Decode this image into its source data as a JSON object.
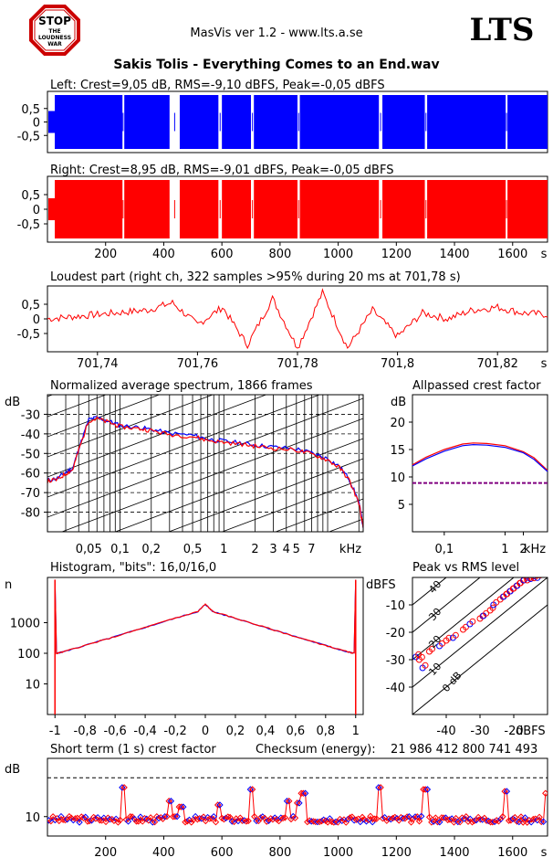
{
  "app": {
    "title": "MasVis ver 1.2 - www.lts.a.se",
    "brand": "LTS",
    "logo": {
      "line1": "STOP",
      "line2": "THE",
      "line3": "LOUDNESS",
      "line4": "WAR"
    },
    "file_title": "Sakis Tolis - Everything Comes to an End.wav",
    "checksum_label": "Checksum (energy):",
    "checksum_value": "21 986 412 800 741 493"
  },
  "colors": {
    "left": "#0000ff",
    "right": "#ff0000"
  },
  "chart_data": [
    {
      "id": "left",
      "type": "area",
      "title": "Left: Crest=9,05 dB, RMS=-9,10 dBFS, Peak=-0,05 dBFS",
      "yticks": [
        "0,5",
        "0",
        "-0,5"
      ],
      "ylim": [
        -1,
        1
      ],
      "xlim": [
        0,
        1720
      ],
      "gaps_s": [
        258,
        262,
        420,
        455,
        588,
        600,
        700,
        710,
        860,
        868,
        1140,
        1152,
        1298,
        1306,
        1576,
        1582
      ]
    },
    {
      "id": "right",
      "type": "area",
      "title": "Right: Crest=8,95 dB, RMS=-9,01 dBFS, Peak=-0,05 dBFS",
      "yticks": [
        "0,5",
        "0",
        "-0,5"
      ],
      "xticks": [
        "200",
        "400",
        "600",
        "800",
        "1000",
        "1200",
        "1400",
        "1600",
        "s"
      ],
      "xtick_values": [
        200,
        400,
        600,
        800,
        1000,
        1200,
        1400,
        1600
      ],
      "ylim": [
        -1,
        1
      ],
      "xlim": [
        0,
        1720
      ],
      "gaps_s": [
        258,
        262,
        420,
        455,
        588,
        600,
        700,
        710,
        860,
        868,
        1140,
        1152,
        1298,
        1306,
        1576,
        1582
      ]
    },
    {
      "id": "loudest",
      "type": "line",
      "title": "Loudest part (right ch, 322 samples >95% during 20 ms at 701,78 s)",
      "yticks": [
        "0,5",
        "0",
        "-0,5"
      ],
      "xticks": [
        "701,74",
        "701,76",
        "701,78",
        "701,8",
        "701,82",
        "s"
      ],
      "xtick_values": [
        701.74,
        701.76,
        701.78,
        701.8,
        701.82
      ],
      "xlim": [
        701.73,
        701.83
      ],
      "ylim": [
        -1,
        1
      ],
      "x": [
        701.73,
        701.74,
        701.75,
        701.755,
        701.76,
        701.765,
        701.77,
        701.775,
        701.78,
        701.785,
        701.79,
        701.795,
        701.8,
        701.805,
        701.81,
        701.815,
        701.82,
        701.825,
        701.83
      ],
      "y": [
        0.0,
        0.15,
        0.3,
        0.55,
        -0.2,
        0.4,
        -0.9,
        0.7,
        -1.0,
        0.9,
        -1.0,
        0.3,
        -0.6,
        0.2,
        0.0,
        0.3,
        0.4,
        0.2,
        0.15
      ]
    },
    {
      "id": "spectrum",
      "type": "line",
      "title": "Normalized average spectrum, 1866 frames",
      "ylabel": "dB",
      "yticks": [
        "-30",
        "-40",
        "-50",
        "-60",
        "-70",
        "-80"
      ],
      "ytick_values": [
        -30,
        -40,
        -50,
        -60,
        -70,
        -80
      ],
      "xticks": [
        "0,05",
        "0,1",
        "0,2",
        "0,5",
        "1",
        "2",
        "3",
        "4",
        "5",
        "7",
        "kHz"
      ],
      "xtick_values": [
        0.05,
        0.1,
        0.2,
        0.5,
        1,
        2,
        3,
        4,
        5,
        7
      ],
      "xscale": "log",
      "xlim": [
        0.02,
        22
      ],
      "ylim": [
        -90,
        -20
      ],
      "x": [
        0.02,
        0.025,
        0.03,
        0.035,
        0.04,
        0.05,
        0.06,
        0.08,
        0.1,
        0.15,
        0.2,
        0.3,
        0.5,
        0.7,
        1,
        1.5,
        2,
        3,
        5,
        7,
        10,
        13,
        16,
        20,
        22
      ],
      "y": [
        -64,
        -63,
        -60,
        -58,
        -48,
        -33,
        -32,
        -34,
        -36,
        -37,
        -38,
        -40,
        -41,
        -43,
        -44,
        -45,
        -46,
        -47,
        -48,
        -50,
        -53,
        -57,
        -63,
        -75,
        -88
      ]
    },
    {
      "id": "crest",
      "type": "line",
      "title": "Allpassed crest factor",
      "ylabel": "dB",
      "yticks": [
        "20",
        "15",
        "10",
        "5"
      ],
      "ytick_values": [
        20,
        15,
        10,
        5
      ],
      "xticks": [
        "0,1",
        "1",
        "2",
        "kHz"
      ],
      "xtick_values": [
        0.1,
        1,
        2
      ],
      "xscale": "log",
      "xlim": [
        0.03,
        5
      ],
      "ylim": [
        0,
        25
      ],
      "x": [
        0.03,
        0.05,
        0.1,
        0.2,
        0.3,
        0.5,
        1,
        2,
        3,
        5
      ],
      "series": [
        {
          "y": [
            12.2,
            13.6,
            15.0,
            16.0,
            16.2,
            16.1,
            15.7,
            14.6,
            13.5,
            11.2
          ]
        },
        {
          "y": [
            12.0,
            13.3,
            14.7,
            15.7,
            15.9,
            15.8,
            15.4,
            14.4,
            13.2,
            11.0
          ]
        }
      ],
      "reference": 8.9
    },
    {
      "id": "histogram",
      "type": "line",
      "title": "Histogram, \"bits\": 16,0/16,0",
      "ylabel": "n",
      "yticks": [
        "1000",
        "100",
        "10"
      ],
      "ytick_values": [
        1000,
        100,
        10
      ],
      "xticks": [
        "-1",
        "-0,8",
        "-0,6",
        "-0,4",
        "-0,2",
        "0",
        "0,2",
        "0,4",
        "0,6",
        "0,8",
        "1"
      ],
      "xtick_values": [
        -1,
        -0.8,
        -0.6,
        -0.4,
        -0.2,
        0,
        0.2,
        0.4,
        0.6,
        0.8,
        1
      ],
      "yscale": "log",
      "xlim": [
        -1.05,
        1.05
      ],
      "ylim": [
        1,
        30000
      ],
      "x": [
        -1,
        -0.99,
        -0.95,
        -0.8,
        -0.6,
        -0.4,
        -0.2,
        -0.05,
        0,
        0.05,
        0.2,
        0.4,
        0.6,
        0.8,
        0.95,
        0.99,
        1
      ],
      "y": [
        25000,
        100,
        110,
        180,
        350,
        700,
        1400,
        2300,
        4000,
        2300,
        1400,
        700,
        350,
        180,
        110,
        100,
        25000
      ]
    },
    {
      "id": "peakrms",
      "type": "scatter",
      "title": "Peak vs RMS level",
      "ylabel": "dBFS",
      "xlabel": "dBFS",
      "yticks": [
        "-10",
        "-20",
        "-30",
        "-40"
      ],
      "ytick_values": [
        -10,
        -20,
        -30,
        -40
      ],
      "xticks": [
        "-40",
        "-30",
        "-20"
      ],
      "xtick_values": [
        -40,
        -30,
        -20
      ],
      "diag_labels": [
        "40",
        "30",
        "20",
        "10",
        "0 dB"
      ],
      "diag_values": [
        40,
        30,
        20,
        10,
        0
      ],
      "xlim": [
        -50,
        -10
      ],
      "ylim": [
        -50,
        0
      ],
      "points": [
        [
          -49,
          -29
        ],
        [
          -48,
          -30
        ],
        [
          -47,
          -33
        ],
        [
          -45,
          -27
        ],
        [
          -42,
          -25
        ],
        [
          -40,
          -23
        ],
        [
          -38,
          -22
        ],
        [
          -35,
          -19
        ],
        [
          -33,
          -17
        ],
        [
          -30,
          -15
        ],
        [
          -29,
          -14
        ],
        [
          -27,
          -12
        ],
        [
          -26,
          -10
        ],
        [
          -24,
          -8
        ],
        [
          -23,
          -7
        ],
        [
          -22,
          -6
        ],
        [
          -21,
          -5
        ],
        [
          -20,
          -4
        ],
        [
          -19,
          -3
        ],
        [
          -18,
          -2
        ],
        [
          -17,
          -1
        ],
        [
          -16,
          -1
        ],
        [
          -15,
          -0.5
        ],
        [
          -14,
          -0.2
        ],
        [
          -13,
          -0.1
        ]
      ]
    },
    {
      "id": "shortcrest",
      "type": "scatter",
      "title": "Short term (1 s) crest factor",
      "ylabel": "dB",
      "yticks": [
        "10"
      ],
      "ytick_values": [
        10
      ],
      "xticks": [
        "200",
        "400",
        "600",
        "800",
        "1000",
        "1200",
        "1400",
        "1600",
        "s"
      ],
      "xtick_values": [
        200,
        400,
        600,
        800,
        1000,
        1200,
        1400,
        1600
      ],
      "xlim": [
        0,
        1720
      ],
      "ylim": [
        5,
        25
      ],
      "reference": 20,
      "peaks": [
        [
          260,
          17.5
        ],
        [
          420,
          14
        ],
        [
          460,
          12.5
        ],
        [
          590,
          13
        ],
        [
          700,
          17
        ],
        [
          830,
          14
        ],
        [
          865,
          13.5
        ],
        [
          880,
          16
        ],
        [
          1140,
          17.5
        ],
        [
          1300,
          17
        ],
        [
          1575,
          16.5
        ],
        [
          1720,
          16
        ]
      ]
    }
  ]
}
